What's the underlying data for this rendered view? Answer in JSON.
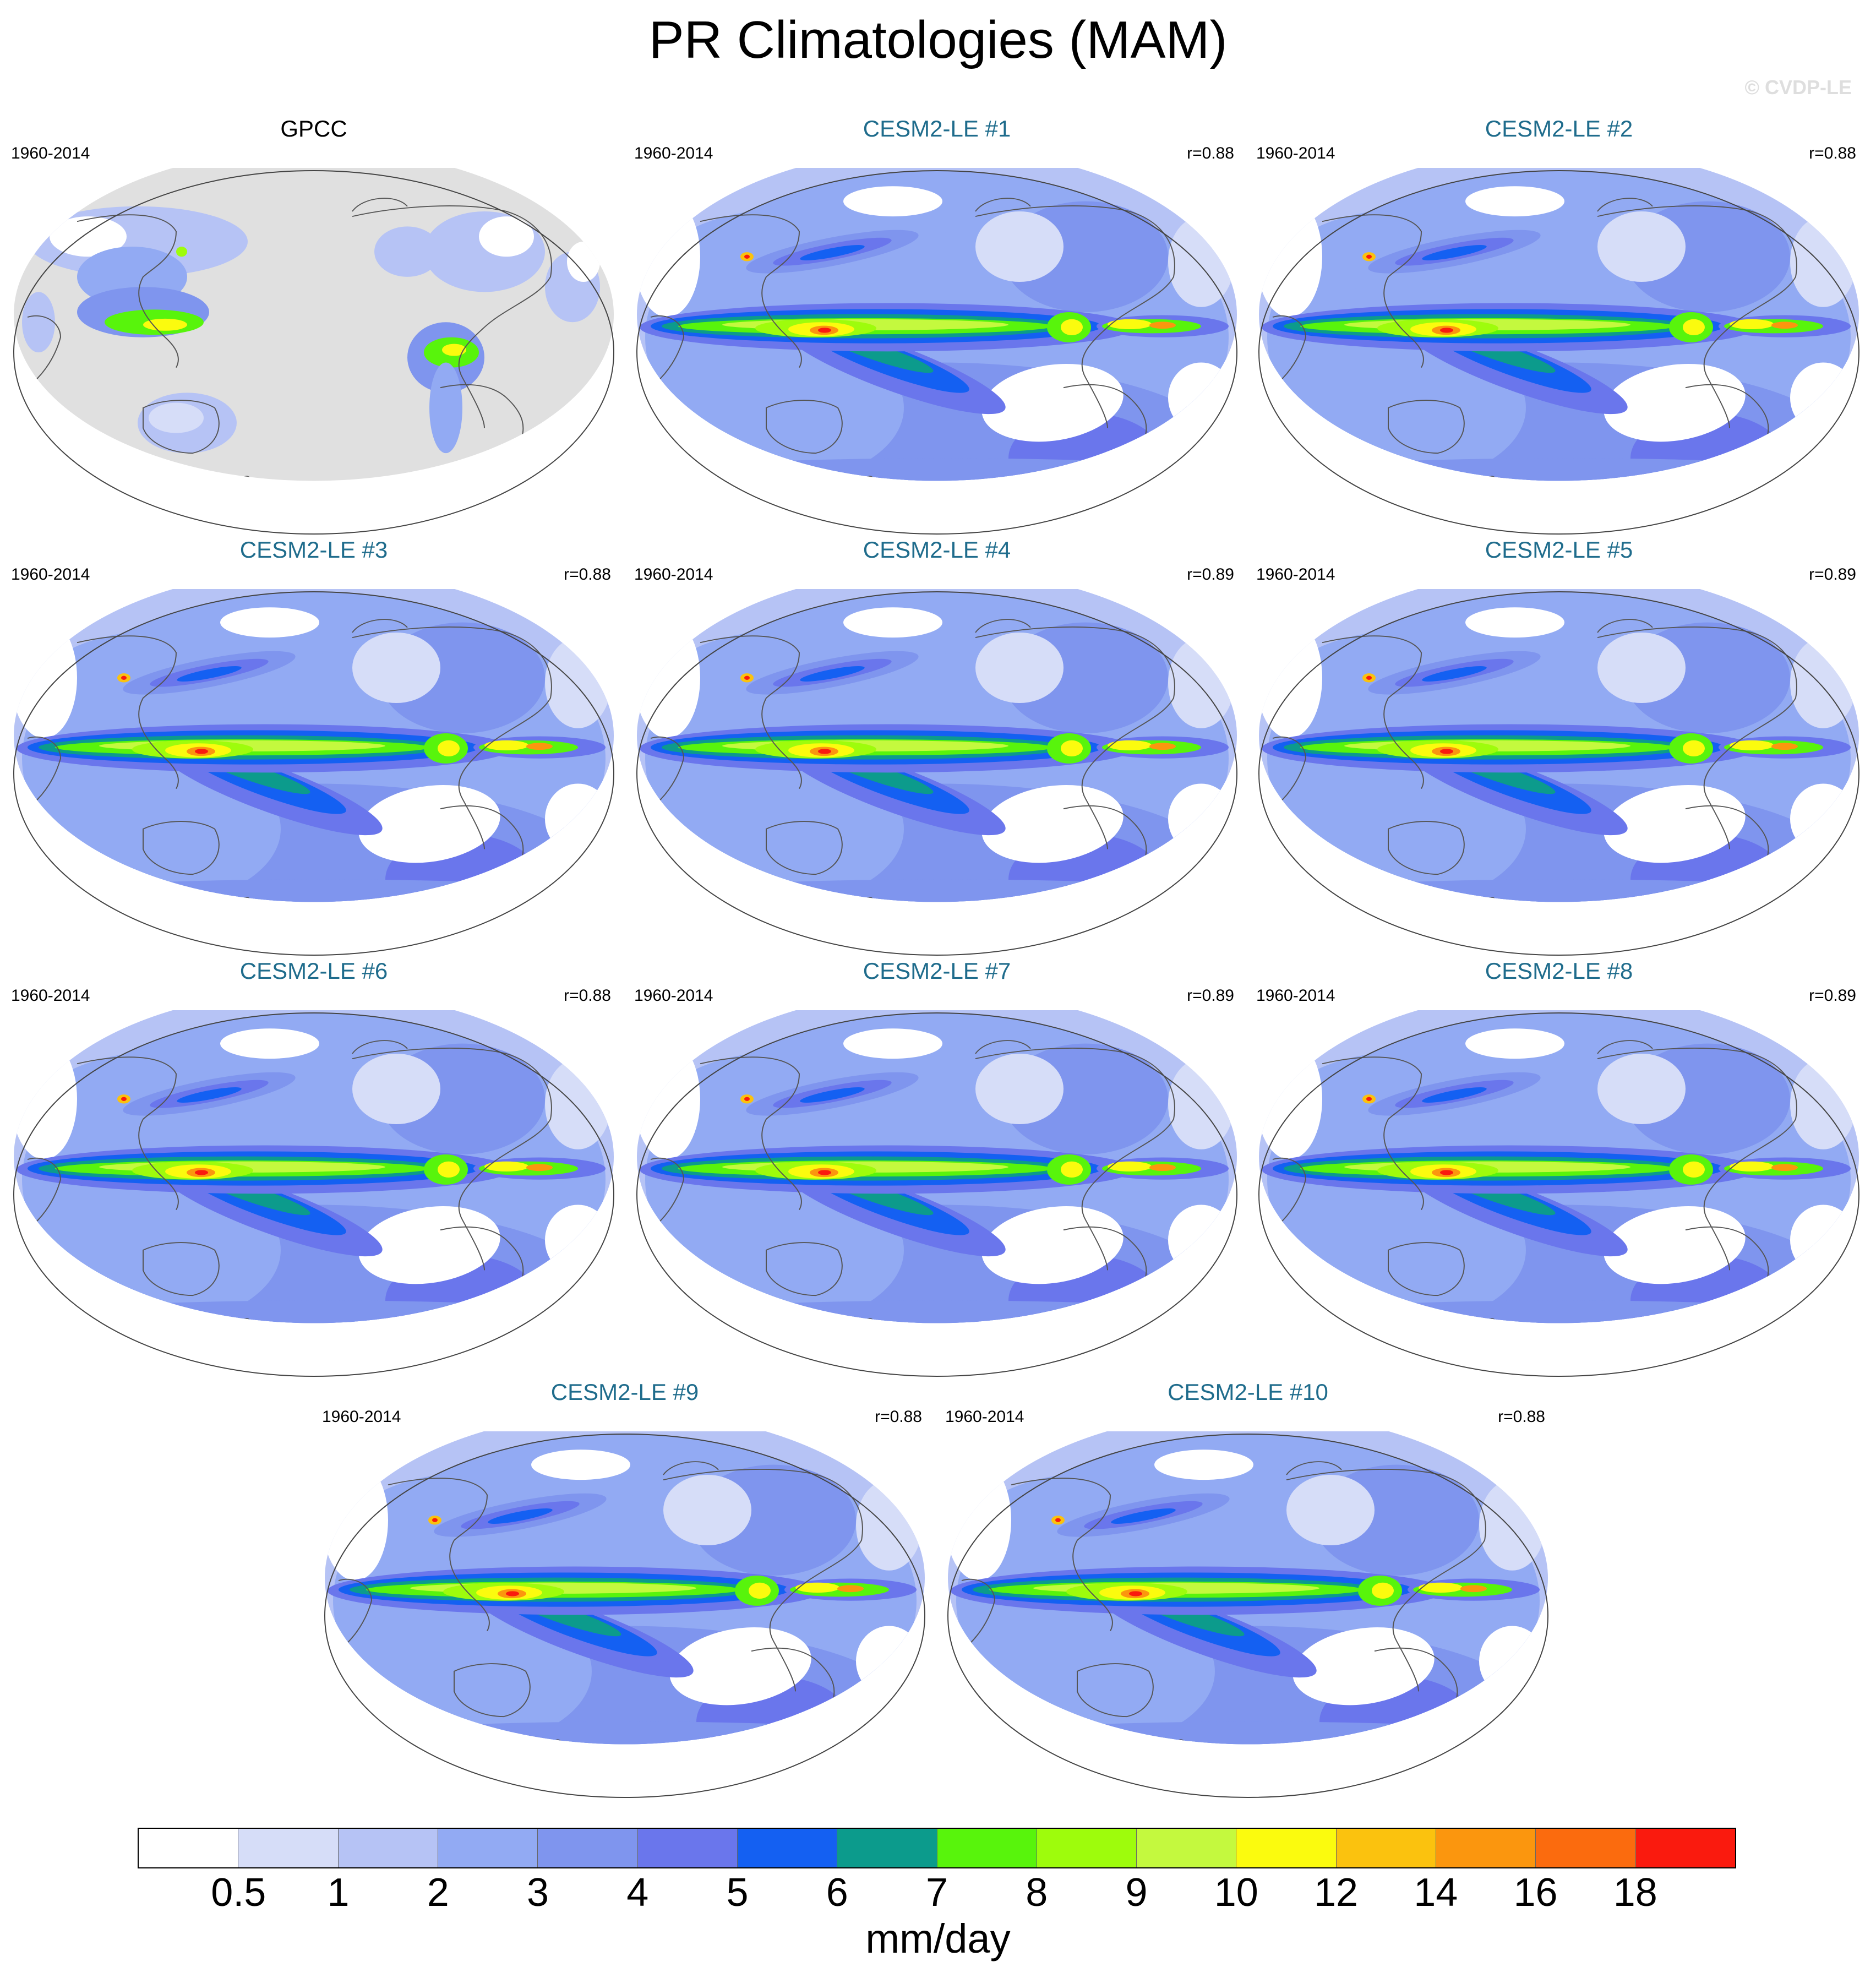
{
  "figure": {
    "title": "PR Climatologies (MAM)",
    "watermark": "© CVDP-LE"
  },
  "panels": [
    {
      "title": "GPCC",
      "years": "1960-2014",
      "corr": "",
      "type": "obs"
    },
    {
      "title": "CESM2-LE #1",
      "years": "1960-2014",
      "corr": "r=0.88",
      "type": "model"
    },
    {
      "title": "CESM2-LE #2",
      "years": "1960-2014",
      "corr": "r=0.88",
      "type": "model"
    },
    {
      "title": "CESM2-LE #3",
      "years": "1960-2014",
      "corr": "r=0.88",
      "type": "model"
    },
    {
      "title": "CESM2-LE #4",
      "years": "1960-2014",
      "corr": "r=0.89",
      "type": "model"
    },
    {
      "title": "CESM2-LE #5",
      "years": "1960-2014",
      "corr": "r=0.89",
      "type": "model"
    },
    {
      "title": "CESM2-LE #6",
      "years": "1960-2014",
      "corr": "r=0.88",
      "type": "model"
    },
    {
      "title": "CESM2-LE #7",
      "years": "1960-2014",
      "corr": "r=0.89",
      "type": "model"
    },
    {
      "title": "CESM2-LE #8",
      "years": "1960-2014",
      "corr": "r=0.89",
      "type": "model"
    },
    {
      "title": "CESM2-LE #9",
      "years": "1960-2014",
      "corr": "r=0.88",
      "type": "model"
    },
    {
      "title": "CESM2-LE #10",
      "years": "1960-2014",
      "corr": "r=0.88",
      "type": "model"
    }
  ],
  "colorbar": {
    "units": "mm/day",
    "levels": [
      "0.5",
      "1",
      "2",
      "3",
      "4",
      "5",
      "6",
      "7",
      "8",
      "9",
      "10",
      "12",
      "14",
      "16",
      "18"
    ],
    "colors": [
      "#ffffff",
      "#d6ddf8",
      "#b6c3f5",
      "#92aaf3",
      "#7f95ee",
      "#6a76ec",
      "#1460f2",
      "#0c9b8c",
      "#58f40c",
      "#9efc0c",
      "#c4f93e",
      "#fbfb0e",
      "#fbc20e",
      "#fb960e",
      "#fb6b0e",
      "#fa1a0e"
    ],
    "land_mask_color": "#e0e0e0"
  }
}
